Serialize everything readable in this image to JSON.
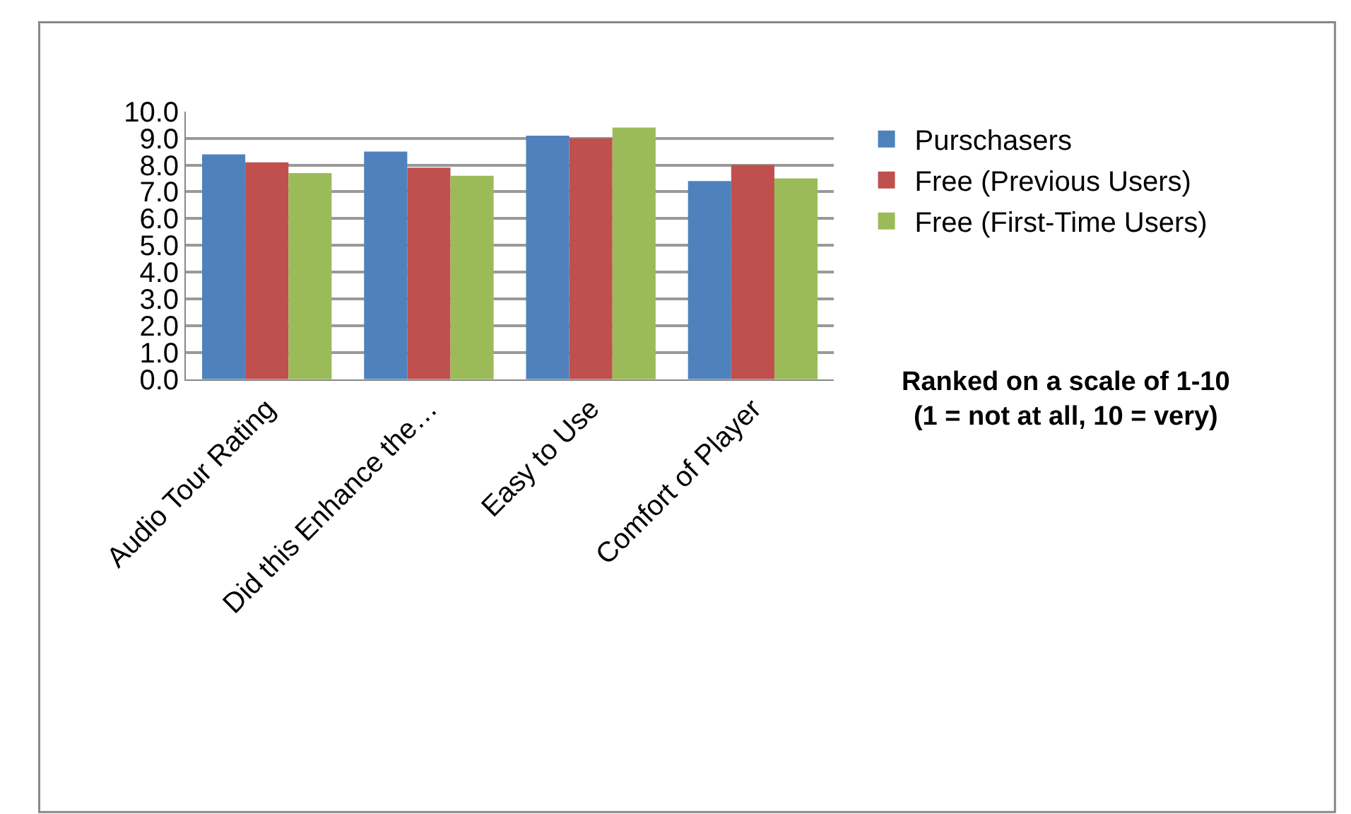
{
  "chart_data": {
    "type": "bar",
    "categories": [
      "Audio Tour Rating",
      "Did this Enhance the…",
      "Easy to Use",
      "Comfort of Player"
    ],
    "series": [
      {
        "name": "Purschasers",
        "color": "#4f81bd",
        "values": [
          8.4,
          8.5,
          9.1,
          7.4
        ]
      },
      {
        "name": "Free (Previous Users)",
        "color": "#c0504d",
        "values": [
          8.1,
          7.9,
          9.0,
          8.0
        ]
      },
      {
        "name": "Free (First-Time Users)",
        "color": "#9bbb59",
        "values": [
          7.7,
          7.6,
          9.4,
          7.5
        ]
      }
    ],
    "ylim": [
      0,
      10
    ],
    "yticks": [
      {
        "value": 0,
        "label": "0.0"
      },
      {
        "value": 1,
        "label": "1.0"
      },
      {
        "value": 2,
        "label": "2.0"
      },
      {
        "value": 3,
        "label": "3.0"
      },
      {
        "value": 4,
        "label": "4.0"
      },
      {
        "value": 5,
        "label": "5.0"
      },
      {
        "value": 6,
        "label": "6.0"
      },
      {
        "value": 7,
        "label": "7.0"
      },
      {
        "value": 8,
        "label": "8.0"
      },
      {
        "value": 9,
        "label": "9.0"
      },
      {
        "value": 10,
        "label": "10.0"
      }
    ],
    "grid": "y",
    "legend": "right",
    "annotations": [
      "Ranked on a scale of 1-10\n(1 = not at all, 10 = very)"
    ]
  }
}
